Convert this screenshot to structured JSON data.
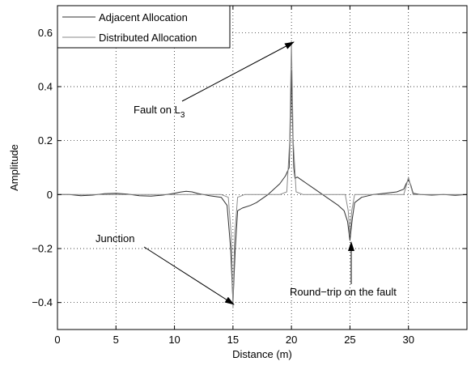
{
  "chart_data": {
    "type": "line",
    "title": "",
    "xlabel": "Distance (m)",
    "ylabel": "Amplitude",
    "xlim": [
      0,
      35
    ],
    "ylim": [
      -0.5,
      0.7
    ],
    "grid": true,
    "grid_style": "dotted",
    "legend_position": "top-left",
    "x_ticks": [
      0,
      5,
      10,
      15,
      20,
      25,
      30
    ],
    "x_tick_labels": [
      "0",
      "5",
      "10",
      "15",
      "20",
      "25",
      "30"
    ],
    "y_ticks": [
      -0.4,
      -0.2,
      0,
      0.2,
      0.4,
      0.6
    ],
    "y_tick_labels": [
      "−0.4",
      "−0.2",
      "0",
      "0.2",
      "0.4",
      "0.6"
    ],
    "series": [
      {
        "name": "Adjacent Allocation",
        "color": "#303030",
        "points": [
          [
            0,
            0
          ],
          [
            1,
            0
          ],
          [
            2,
            -0.004
          ],
          [
            3,
            -0.002
          ],
          [
            4,
            0.003
          ],
          [
            5,
            0.005
          ],
          [
            6,
            0.002
          ],
          [
            7,
            -0.004
          ],
          [
            8,
            -0.006
          ],
          [
            9,
            -0.002
          ],
          [
            10,
            0.005
          ],
          [
            10.5,
            0.009
          ],
          [
            11,
            0.012
          ],
          [
            11.5,
            0.01
          ],
          [
            12,
            0.004
          ],
          [
            13,
            -0.004
          ],
          [
            14,
            -0.01
          ],
          [
            14.5,
            -0.04
          ],
          [
            14.8,
            -0.2
          ],
          [
            15,
            -0.4
          ],
          [
            15.2,
            -0.2
          ],
          [
            15.4,
            -0.06
          ],
          [
            15.8,
            -0.05
          ],
          [
            16.5,
            -0.04
          ],
          [
            17,
            -0.03
          ],
          [
            18,
            0
          ],
          [
            19,
            0.04
          ],
          [
            19.5,
            0.07
          ],
          [
            19.8,
            0.1
          ],
          [
            19.9,
            0.25
          ],
          [
            20,
            0.46
          ],
          [
            20.1,
            0.25
          ],
          [
            20.2,
            0.1
          ],
          [
            20.3,
            0.06
          ],
          [
            20.5,
            0.065
          ],
          [
            21,
            0.05
          ],
          [
            22,
            0.02
          ],
          [
            23,
            -0.01
          ],
          [
            24,
            -0.04
          ],
          [
            24.5,
            -0.06
          ],
          [
            24.8,
            -0.1
          ],
          [
            25,
            -0.17
          ],
          [
            25.2,
            -0.09
          ],
          [
            25.4,
            -0.03
          ],
          [
            26,
            -0.01
          ],
          [
            27,
            0
          ],
          [
            28,
            0.005
          ],
          [
            29,
            0.01
          ],
          [
            29.6,
            0.02
          ],
          [
            29.8,
            0.04
          ],
          [
            30,
            0.055
          ],
          [
            30.2,
            0.035
          ],
          [
            30.4,
            0.005
          ],
          [
            31,
            0
          ],
          [
            32,
            -0.002
          ],
          [
            33,
            0
          ],
          [
            34,
            -0.003
          ],
          [
            35,
            0
          ]
        ]
      },
      {
        "name": "Distributed Allocation",
        "color": "#8a8a8a",
        "points": [
          [
            0,
            0
          ],
          [
            3,
            0
          ],
          [
            6,
            0
          ],
          [
            9,
            0
          ],
          [
            12,
            0
          ],
          [
            14,
            0
          ],
          [
            14.6,
            -0.01
          ],
          [
            14.85,
            -0.15
          ],
          [
            15,
            -0.42
          ],
          [
            15.15,
            -0.15
          ],
          [
            15.4,
            -0.01
          ],
          [
            16,
            0
          ],
          [
            19,
            0
          ],
          [
            19.6,
            0.01
          ],
          [
            19.85,
            0.2
          ],
          [
            20,
            0.57
          ],
          [
            20.15,
            0.2
          ],
          [
            20.4,
            0.01
          ],
          [
            21,
            0
          ],
          [
            24.6,
            0
          ],
          [
            24.85,
            -0.06
          ],
          [
            25,
            -0.15
          ],
          [
            25.15,
            -0.06
          ],
          [
            25.4,
            0
          ],
          [
            29.6,
            0
          ],
          [
            29.8,
            0.03
          ],
          [
            30,
            0.065
          ],
          [
            30.2,
            0.03
          ],
          [
            30.4,
            0
          ],
          [
            35,
            0
          ]
        ]
      }
    ],
    "annotations": [
      {
        "text": "Fault on L",
        "subscript": "3",
        "arrow_to": [
          20,
          0.57
        ]
      },
      {
        "text": "Junction",
        "arrow_to": [
          15,
          -0.41
        ]
      },
      {
        "text": "Round−trip on the fault",
        "arrow_to": [
          25,
          -0.16
        ]
      }
    ]
  }
}
